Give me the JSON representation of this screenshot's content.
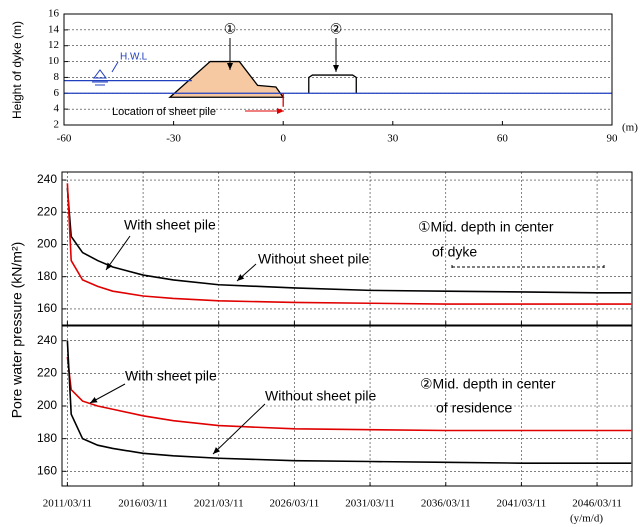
{
  "chart_data": [
    {
      "type": "area",
      "ylabel": "Height of dyke (m)",
      "x_unit": "(m)",
      "xlim": [
        -60,
        90
      ],
      "xticks": [
        -60,
        -30,
        0,
        30,
        60,
        90
      ],
      "ylim": [
        2,
        16
      ],
      "yticks": [
        2,
        4,
        6,
        8,
        10,
        12,
        14,
        16
      ],
      "grid": true,
      "annotations": {
        "hwl": "H.W.L",
        "sheet_pile": "Location of sheet pile",
        "point1": "①",
        "point2": "②"
      },
      "series": [
        {
          "color": "#000000",
          "fill": "#f6c9a2",
          "x": [
            -31,
            -20,
            -12,
            -7,
            -2,
            0
          ],
          "values": [
            5.5,
            10,
            10,
            7,
            6.8,
            5.5
          ]
        },
        {
          "color": "#000000",
          "x": [
            7,
            7,
            8,
            19,
            20,
            20
          ],
          "values": [
            6,
            8,
            8.3,
            8.3,
            8,
            6
          ]
        },
        {
          "color": "#1f3fbf",
          "x": [
            -60,
            -25
          ],
          "values": [
            7.6,
            7.6
          ]
        },
        {
          "color": "#1f3fbf",
          "x": [
            -60,
            90
          ],
          "values": [
            6,
            6
          ]
        },
        {
          "color": "#e00000",
          "x": [
            0,
            0
          ],
          "values": [
            6,
            4.3
          ]
        }
      ]
    },
    {
      "type": "line",
      "ylabel": "Pore water pressure (kN/m²)",
      "xlim": [
        "2010/11/01",
        "2048/07/01"
      ],
      "ylim": [
        150,
        245
      ],
      "yticks": [
        160,
        180,
        200,
        220,
        240
      ],
      "grid": true,
      "note": [
        "①Mid. depth in center",
        "of dyke"
      ],
      "label_with": "With sheet pile",
      "label_without": "Without sheet pile",
      "x": [
        "2011/03/11",
        "2011/06/11",
        "2012/03/11",
        "2013/03/11",
        "2014/03/11",
        "2016/03/11",
        "2018/03/11",
        "2021/03/11",
        "2026/03/11",
        "2031/03/11",
        "2036/03/11",
        "2041/03/11",
        "2046/03/11",
        "2048/06/11"
      ],
      "series": [
        {
          "color": "#000000",
          "values": [
            235,
            205,
            195,
            190,
            186,
            181,
            178,
            175,
            173,
            171.5,
            171,
            170.5,
            170,
            170
          ]
        },
        {
          "color": "#e00000",
          "values": [
            238,
            190,
            178,
            174,
            171,
            168,
            166.5,
            165,
            164,
            163.5,
            163,
            163,
            163,
            163
          ]
        }
      ]
    },
    {
      "type": "line",
      "x_unit": "(y/m/d)",
      "xlim": [
        "2010/11/01",
        "2048/07/01"
      ],
      "ylim": [
        151,
        249
      ],
      "yticks": [
        160,
        180,
        200,
        220,
        240
      ],
      "grid": true,
      "xticks": [
        "2011/03/11",
        "2016/03/11",
        "2021/03/11",
        "2026/03/11",
        "2031/03/11",
        "2036/03/11",
        "2041/03/11",
        "2046/03/11"
      ],
      "note": [
        "②Mid. depth in center",
        "of residence"
      ],
      "label_with": "With sheet pile",
      "label_without": "Without sheet pile",
      "x": [
        "2011/03/11",
        "2011/06/11",
        "2012/03/11",
        "2013/03/11",
        "2014/03/11",
        "2016/03/11",
        "2018/03/11",
        "2021/03/11",
        "2026/03/11",
        "2031/03/11",
        "2036/03/11",
        "2041/03/11",
        "2046/03/11",
        "2048/06/11"
      ],
      "series": [
        {
          "color": "#e00000",
          "values": [
            230,
            210,
            203,
            200,
            198,
            194,
            191,
            188,
            186,
            185.5,
            185,
            185,
            185,
            185
          ]
        },
        {
          "color": "#000000",
          "values": [
            240,
            195,
            180,
            176,
            174,
            171,
            169.5,
            168,
            166.5,
            166,
            165.5,
            165,
            165,
            165
          ]
        }
      ]
    }
  ]
}
